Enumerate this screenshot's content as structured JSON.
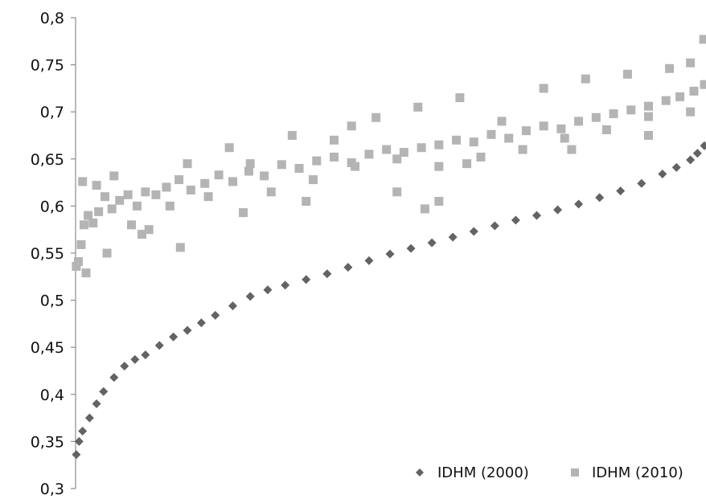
{
  "chart_data": {
    "type": "scatter",
    "title": "",
    "xlabel": "",
    "ylabel": "",
    "ylim": [
      0.3,
      0.8
    ],
    "yticks": [
      {
        "value": 0.3,
        "label": "0,3"
      },
      {
        "value": 0.35,
        "label": "0,35"
      },
      {
        "value": 0.4,
        "label": "0,4"
      },
      {
        "value": 0.45,
        "label": "0,45"
      },
      {
        "value": 0.5,
        "label": "0,5"
      },
      {
        "value": 0.55,
        "label": "0,55"
      },
      {
        "value": 0.6,
        "label": "0,6"
      },
      {
        "value": 0.65,
        "label": "0,65"
      },
      {
        "value": 0.7,
        "label": "0,7"
      },
      {
        "value": 0.75,
        "label": "0,75"
      },
      {
        "value": 0.8,
        "label": "0,8"
      }
    ],
    "grid": false,
    "legend_position": "bottom-right",
    "series": [
      {
        "name": "IDHM (2000)",
        "marker": "diamond",
        "color": "#636363",
        "x": [
          1,
          5,
          10,
          20,
          30,
          40,
          55,
          70,
          85,
          100,
          120,
          140,
          160,
          180,
          200,
          225,
          250,
          275,
          300,
          330,
          360,
          390,
          420,
          450,
          480,
          510,
          540,
          570,
          600,
          630,
          660,
          690,
          720,
          750,
          780,
          810,
          840,
          860,
          880,
          890,
          900
        ],
        "y": [
          0.336,
          0.35,
          0.361,
          0.375,
          0.39,
          0.403,
          0.418,
          0.43,
          0.437,
          0.442,
          0.452,
          0.461,
          0.468,
          0.476,
          0.484,
          0.494,
          0.504,
          0.511,
          0.516,
          0.522,
          0.528,
          0.535,
          0.542,
          0.549,
          0.555,
          0.561,
          0.567,
          0.573,
          0.579,
          0.585,
          0.59,
          0.596,
          0.602,
          0.609,
          0.616,
          0.624,
          0.634,
          0.641,
          0.649,
          0.656,
          0.664
        ]
      },
      {
        "name": "IDHM (2010)",
        "marker": "square",
        "color": "#b4b4b4",
        "x": [
          1,
          4,
          8,
          12,
          18,
          25,
          33,
          42,
          52,
          63,
          75,
          88,
          100,
          115,
          130,
          148,
          165,
          185,
          205,
          225,
          248,
          270,
          295,
          320,
          345,
          370,
          395,
          420,
          445,
          470,
          495,
          520,
          545,
          570,
          595,
          620,
          645,
          670,
          695,
          720,
          745,
          770,
          795,
          820,
          845,
          865,
          885,
          900,
          10,
          30,
          55,
          80,
          105,
          135,
          160,
          190,
          220,
          250,
          280,
          310,
          340,
          370,
          400,
          430,
          460,
          490,
          520,
          550,
          580,
          610,
          640,
          670,
          700,
          730,
          760,
          790,
          820,
          850,
          880,
          15,
          45,
          95,
          150,
          240,
          330,
          460,
          560,
          710,
          880,
          500,
          520,
          395,
          820,
          899
        ],
        "y": [
          0.536,
          0.541,
          0.559,
          0.58,
          0.59,
          0.582,
          0.594,
          0.61,
          0.597,
          0.606,
          0.612,
          0.6,
          0.615,
          0.612,
          0.62,
          0.628,
          0.617,
          0.624,
          0.633,
          0.626,
          0.637,
          0.632,
          0.644,
          0.64,
          0.648,
          0.652,
          0.646,
          0.655,
          0.66,
          0.657,
          0.662,
          0.665,
          0.67,
          0.668,
          0.676,
          0.672,
          0.68,
          0.685,
          0.682,
          0.69,
          0.694,
          0.698,
          0.702,
          0.706,
          0.712,
          0.716,
          0.722,
          0.729,
          0.626,
          0.622,
          0.632,
          0.58,
          0.575,
          0.6,
          0.645,
          0.61,
          0.662,
          0.645,
          0.615,
          0.675,
          0.628,
          0.67,
          0.642,
          0.694,
          0.65,
          0.705,
          0.642,
          0.715,
          0.652,
          0.69,
          0.66,
          0.725,
          0.672,
          0.735,
          0.681,
          0.74,
          0.695,
          0.746,
          0.752,
          0.529,
          0.55,
          0.57,
          0.556,
          0.593,
          0.605,
          0.615,
          0.645,
          0.66,
          0.7,
          0.597,
          0.605,
          0.685,
          0.675,
          0.777
        ]
      }
    ]
  }
}
